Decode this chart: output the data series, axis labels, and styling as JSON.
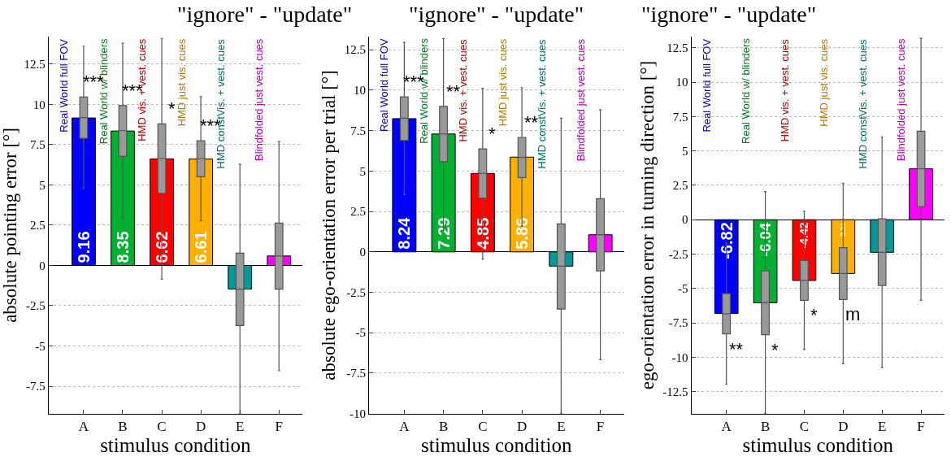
{
  "chart_data": [
    {
      "type": "bar",
      "title": "\"ignore\" - \"update\"",
      "xlabel": "stimulus condition",
      "ylabel": "absolute pointing error [°]",
      "categories": [
        "A",
        "B",
        "C",
        "D",
        "E",
        "F"
      ],
      "series": [
        {
          "values": [
            9.16,
            8.35,
            6.62,
            6.61,
            -1.47,
            0.59
          ],
          "value_labels": [
            "9.16",
            "8.35",
            "6.62",
            "6.61",
            null,
            null
          ],
          "colors": [
            "#0000ff",
            "#00b030",
            "#ff0000",
            "#ffb000",
            "#009999",
            "#ff00ff"
          ]
        },
        {
          "type": "box",
          "color": "#999999",
          "boxes": [
            {
              "low": 4.78,
              "q1": 7.9,
              "median": 9.18,
              "q3": 10.46,
              "high": 13.62
            },
            {
              "low": 2.91,
              "q1": 6.79,
              "median": 8.37,
              "q3": 9.93,
              "high": 13.8
            },
            {
              "low": -0.85,
              "q1": 4.48,
              "median": 6.64,
              "q3": 8.79,
              "high": 14.1
            },
            {
              "low": 2.77,
              "q1": 5.51,
              "median": 6.64,
              "q3": 7.74,
              "high": 10.48
            },
            {
              "low": -9.2,
              "q1": -3.73,
              "median": -1.47,
              "q3": 0.76,
              "high": 6.29
            },
            {
              "low": -6.54,
              "q1": -1.47,
              "median": 0.59,
              "q3": 2.63,
              "high": 7.69
            }
          ]
        }
      ],
      "ylim": [
        -9.2,
        14.2
      ],
      "yticks": [
        -7.5,
        -5,
        -2.5,
        0,
        2.5,
        5,
        7.5,
        10,
        12.5
      ],
      "grid": "y",
      "annotations": [
        "Real World full FOV",
        "Real World w/ blinders",
        "HMD vis. + vest. cues",
        "HMD just vis. cues",
        "HMD constVis. + vest. cues",
        "Blindfolded just vest. cues",
        "***",
        "***",
        "*",
        "***"
      ]
    },
    {
      "type": "bar",
      "title": "\"ignore\" - \"update\"",
      "xlabel": "stimulus condition",
      "ylabel": "absolute ego-orientation error per trial [°]",
      "categories": [
        "A",
        "B",
        "C",
        "D",
        "E",
        "F"
      ],
      "series": [
        {
          "values": [
            8.24,
            7.29,
            4.85,
            5.86,
            -0.88,
            1.06
          ],
          "value_labels": [
            "8.24",
            "7.29",
            "4.85",
            "5.86",
            null,
            null
          ],
          "colors": [
            "#0000ff",
            "#00b030",
            "#ff0000",
            "#ffb000",
            "#009999",
            "#ff00ff"
          ]
        },
        {
          "type": "box",
          "color": "#999999",
          "boxes": [
            {
              "low": 3.54,
              "q1": 6.9,
              "median": 8.27,
              "q3": 9.59,
              "high": 12.96
            },
            {
              "low": 1.33,
              "q1": 5.58,
              "median": 7.29,
              "q3": 9.0,
              "high": 13.2
            },
            {
              "low": -0.44,
              "q1": 3.33,
              "median": 4.85,
              "q3": 6.37,
              "high": 10.12
            },
            {
              "low": 1.59,
              "q1": 4.6,
              "median": 5.84,
              "q3": 7.08,
              "high": 10.16
            },
            {
              "low": -10,
              "q1": -3.54,
              "median": -0.88,
              "q3": 1.73,
              "high": 8.27
            },
            {
              "low": -6.67,
              "q1": -1.17,
              "median": 1.06,
              "q3": 3.29,
              "high": 8.8
            }
          ]
        }
      ],
      "ylim": [
        -10,
        13.3
      ],
      "yticks": [
        -10,
        -7.5,
        -5,
        -2.5,
        0,
        2.5,
        5,
        7.5,
        10,
        12.5
      ],
      "grid": "y",
      "annotations": [
        "Real World full FOV",
        "Real World w/ blinders",
        "HMD vis. + vest. cues",
        "HMD just vis. cues",
        "HMD constVis. + vest. cues",
        "Blindfolded just vest. cues",
        "***",
        "**",
        "*",
        "**"
      ]
    },
    {
      "type": "bar",
      "title": "\"ignore\" - \"update\"",
      "xlabel": "stimulus condition",
      "ylabel": "ego-orientation error in turning direction [°]",
      "categories": [
        "A",
        "B",
        "C",
        "D",
        "E",
        "F"
      ],
      "series": [
        {
          "values": [
            -6.82,
            -6.04,
            -4.42,
            -3.91,
            -2.37,
            3.7
          ],
          "value_labels": [
            "-6.82",
            "-6.04",
            "-4.42",
            "-3.91",
            null,
            null
          ],
          "colors": [
            "#0000ff",
            "#00b030",
            "#ff0000",
            "#ffb000",
            "#009999",
            "#ff00ff"
          ]
        },
        {
          "type": "box",
          "color": "#999999",
          "boxes": [
            {
              "low": -11.95,
              "q1": -8.3,
              "median": -6.84,
              "q3": -5.38,
              "high": -1.7
            },
            {
              "low": -14.1,
              "q1": -8.36,
              "median": -6.03,
              "q3": -3.72,
              "high": 2.04
            },
            {
              "low": -9.44,
              "q1": -5.86,
              "median": -4.41,
              "q3": -2.97,
              "high": 0.62
            },
            {
              "low": -10.48,
              "q1": -5.8,
              "median": -3.91,
              "q3": -2.04,
              "high": 2.66
            },
            {
              "low": -10.75,
              "q1": -4.78,
              "median": -2.37,
              "q3": 0.06,
              "high": 6.03
            },
            {
              "low": -5.86,
              "q1": 0.96,
              "median": 3.7,
              "q3": 6.44,
              "high": 13.2
            }
          ]
        }
      ],
      "ylim": [
        -14.1,
        13.3
      ],
      "yticks": [
        -12.5,
        -10,
        -7.5,
        -5,
        -2.5,
        0,
        2.5,
        5,
        7.5,
        10,
        12.5
      ],
      "grid": "y",
      "annotations": [
        "Real World full FOV",
        "Real World w/ blinders",
        "HMD vis. + vest. cues",
        "HMD just vis. cues",
        "HMD constVis. + vest. cues",
        "Blindfolded just vest. cues",
        "**",
        "*",
        "*",
        "m"
      ]
    }
  ]
}
